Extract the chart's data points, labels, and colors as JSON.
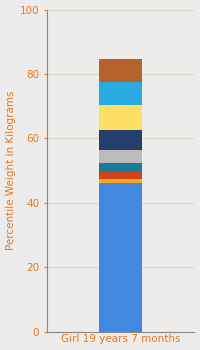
{
  "category": "Girl 19 years 7 months",
  "ylabel": "Percentile Weight in Kilograms",
  "ylim": [
    0,
    100
  ],
  "yticks": [
    0,
    20,
    40,
    60,
    80,
    100
  ],
  "segments": [
    {
      "value": 46,
      "color": "#4189E0"
    },
    {
      "value": 1.5,
      "color": "#F5A623"
    },
    {
      "value": 2,
      "color": "#D0421D"
    },
    {
      "value": 3,
      "color": "#1A7A9A"
    },
    {
      "value": 4,
      "color": "#BBBBBB"
    },
    {
      "value": 6,
      "color": "#253F6B"
    },
    {
      "value": 8,
      "color": "#FFE066"
    },
    {
      "value": 7,
      "color": "#29ABE2"
    },
    {
      "value": 7,
      "color": "#B5622C"
    }
  ],
  "background_color": "#EEECEA",
  "axis_bg_color": "#EEECEA",
  "grid_color": "#D8D4CE",
  "tick_color": "#E87722",
  "label_color": "#E87722",
  "ylabel_fontsize": 7.5,
  "tick_fontsize": 7.5,
  "bar_width": 0.35
}
